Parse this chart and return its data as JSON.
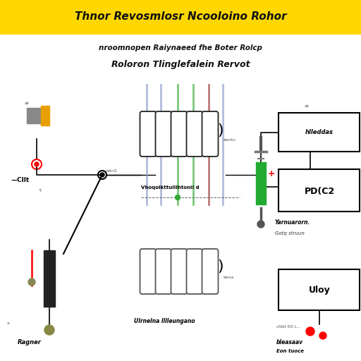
{
  "title": "Thnor Revosmlosr Ncooloino Rohor",
  "subtitle_line1": "nroomnopen Raiynaeed fhe Boter Rolcp",
  "subtitle_line2": "Roloron Tlinglefalein Rervot",
  "bg_color": "#ffffff",
  "title_bg": "#FFD700",
  "title_color": "#111111",
  "subtitle_color": "#111111"
}
